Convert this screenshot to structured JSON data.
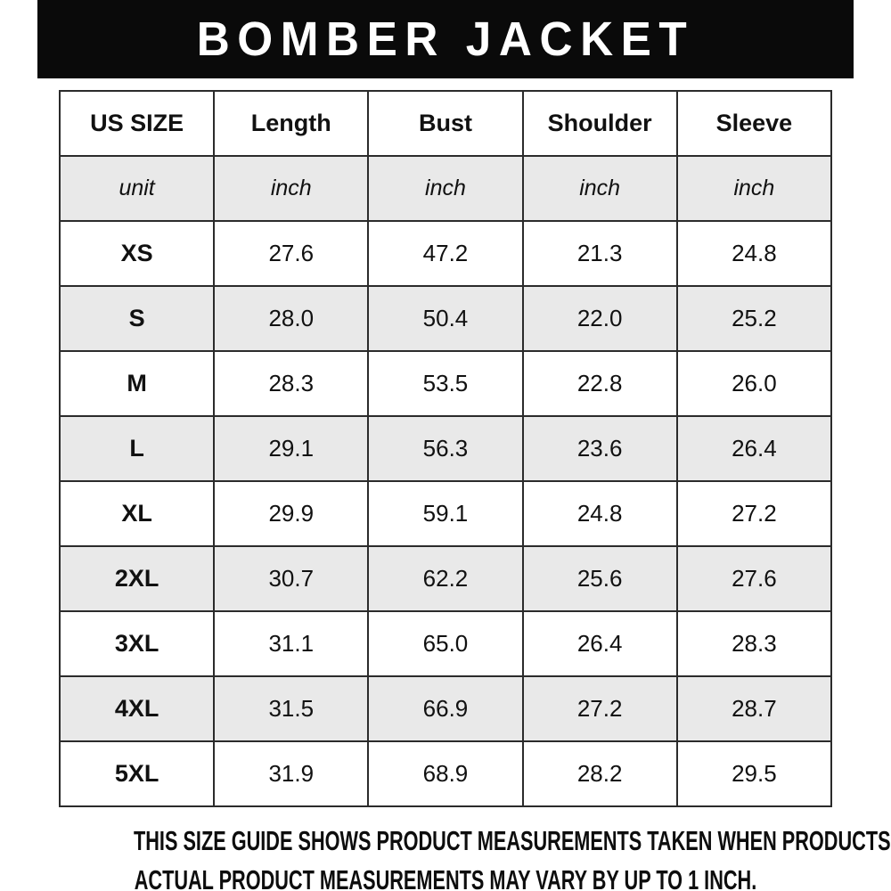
{
  "header": {
    "title": "BOMBER JACKET"
  },
  "size_table": {
    "columns": [
      "US SIZE",
      "Length",
      "Bust",
      "Shoulder",
      "Sleeve"
    ],
    "unit_row": [
      "unit",
      "inch",
      "inch",
      "inch",
      "inch"
    ],
    "rows": [
      [
        "XS",
        "27.6",
        "47.2",
        "21.3",
        "24.8"
      ],
      [
        "S",
        "28.0",
        "50.4",
        "22.0",
        "25.2"
      ],
      [
        "M",
        "28.3",
        "53.5",
        "22.8",
        "26.0"
      ],
      [
        "L",
        "29.1",
        "56.3",
        "23.6",
        "26.4"
      ],
      [
        "XL",
        "29.9",
        "59.1",
        "24.8",
        "27.2"
      ],
      [
        "2XL",
        "30.7",
        "62.2",
        "25.6",
        "27.6"
      ],
      [
        "3XL",
        "31.1",
        "65.0",
        "26.4",
        "28.3"
      ],
      [
        "4XL",
        "31.5",
        "66.9",
        "27.2",
        "28.7"
      ],
      [
        "5XL",
        "31.9",
        "68.9",
        "28.2",
        "29.5"
      ]
    ]
  },
  "footer": {
    "line1": "THIS SIZE GUIDE SHOWS PRODUCT MEASUREMENTS TAKEN WHEN PRODUCTS ARE LAID FLAT.",
    "line2": "ACTUAL PRODUCT MEASUREMENTS MAY VARY BY UP TO 1 INCH."
  },
  "colors": {
    "banner_bg": "#0a0a0a",
    "banner_text": "#ffffff",
    "row_stripe": "#e9e9e9",
    "table_border": "#2b2b2b",
    "text": "#111111"
  },
  "chart_data": {
    "type": "table",
    "title": "BOMBER JACKET",
    "columns": [
      "US SIZE",
      "Length",
      "Bust",
      "Shoulder",
      "Sleeve"
    ],
    "units": [
      "unit",
      "inch",
      "inch",
      "inch",
      "inch"
    ],
    "rows": [
      [
        "XS",
        27.6,
        47.2,
        21.3,
        24.8
      ],
      [
        "S",
        28.0,
        50.4,
        22.0,
        25.2
      ],
      [
        "M",
        28.3,
        53.5,
        22.8,
        26.0
      ],
      [
        "L",
        29.1,
        56.3,
        23.6,
        26.4
      ],
      [
        "XL",
        29.9,
        59.1,
        24.8,
        27.2
      ],
      [
        "2XL",
        30.7,
        62.2,
        25.6,
        27.6
      ],
      [
        "3XL",
        31.1,
        65.0,
        26.4,
        28.3
      ],
      [
        "4XL",
        31.5,
        66.9,
        27.2,
        28.7
      ],
      [
        "5XL",
        31.9,
        68.9,
        28.2,
        29.5
      ]
    ],
    "notes": [
      "THIS SIZE GUIDE SHOWS PRODUCT MEASUREMENTS TAKEN WHEN PRODUCTS ARE LAID FLAT.",
      "ACTUAL PRODUCT MEASUREMENTS MAY VARY BY UP TO 1 INCH."
    ]
  }
}
